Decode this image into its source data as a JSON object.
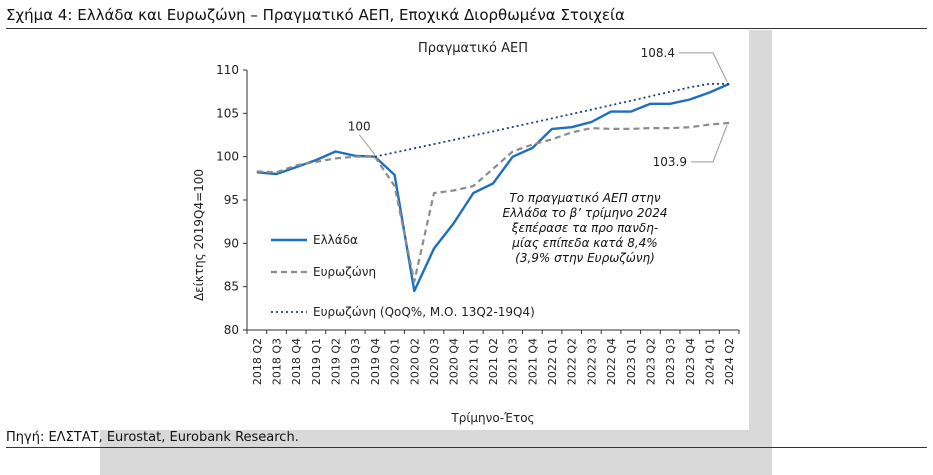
{
  "figure": {
    "title": "Σχήμα 4: Ελλάδα και Ευρωζώνη – Πραγματικό ΑΕΠ, Εποχικά Διορθωμένα Στοιχεία",
    "source": "Πηγή: ΕΛΣΤΑΤ, Eurostat, Eurobank Research."
  },
  "chart_data": {
    "type": "line",
    "title": "Πραγματικό ΑΕΠ",
    "xlabel": "Τρίμηνο-Έτος",
    "ylabel": "Δείκτης 2019Q4=100",
    "ylim": [
      80,
      110
    ],
    "yticks": [
      80,
      85,
      90,
      95,
      100,
      105,
      110
    ],
    "grid": false,
    "legend_position": "left",
    "categories": [
      "2018 Q2",
      "2018 Q3",
      "2018 Q4",
      "2019 Q1",
      "2019 Q2",
      "2019 Q3",
      "2019 Q4",
      "2020 Q1",
      "2020 Q2",
      "2020 Q3",
      "2020 Q4",
      "2021 Q1",
      "2021 Q2",
      "2021 Q3",
      "2021 Q4",
      "2022 Q1",
      "2022 Q2",
      "2022 Q3",
      "2022 Q4",
      "2023 Q1",
      "2023 Q2",
      "2023 Q3",
      "2023 Q4",
      "2024 Q1",
      "2024 Q2"
    ],
    "series": [
      {
        "name": "Ελλάδα",
        "style": "solid",
        "color": "#1f6fbf",
        "values": [
          98.2,
          98.0,
          98.8,
          99.6,
          100.6,
          100.1,
          100.0,
          97.9,
          84.5,
          89.4,
          92.3,
          95.8,
          96.9,
          100.0,
          101.0,
          103.2,
          103.4,
          104.0,
          105.2,
          105.2,
          106.1,
          106.1,
          106.6,
          107.4,
          108.4
        ]
      },
      {
        "name": "Ευρωζώνη",
        "style": "dashed",
        "color": "#8c8c8c",
        "values": [
          98.3,
          98.2,
          99.0,
          99.4,
          99.8,
          100.0,
          100.0,
          96.6,
          85.6,
          95.8,
          96.1,
          96.6,
          98.6,
          100.6,
          101.4,
          102.0,
          102.8,
          103.3,
          103.2,
          103.2,
          103.3,
          103.3,
          103.4,
          103.7,
          103.9
        ]
      },
      {
        "name": "Ευρωζώνη (QoQ%, Μ.Ο. 13Q2-19Q4)",
        "style": "dotted",
        "color": "#1f3f7a",
        "values": [
          null,
          null,
          null,
          null,
          null,
          null,
          100.0,
          100.48,
          100.96,
          101.45,
          101.94,
          102.43,
          102.92,
          103.42,
          103.92,
          104.42,
          104.92,
          105.43,
          105.94,
          106.45,
          106.96,
          107.48,
          108.0,
          108.4,
          108.4
        ]
      }
    ],
    "annotations": {
      "label_100": "100",
      "label_greece_end": "108.4",
      "label_ez_end": "103.9",
      "note_lines": [
        "Το πραγματικό ΑΕΠ στην",
        "Ελλάδα το β’ τρίμηνο 2024",
        "ξεπέρασε τα προ πανδη-",
        "μίας επίπεδα κατά 8,4%",
        "(3,9% στην Ευρωζώνη)"
      ]
    }
  }
}
